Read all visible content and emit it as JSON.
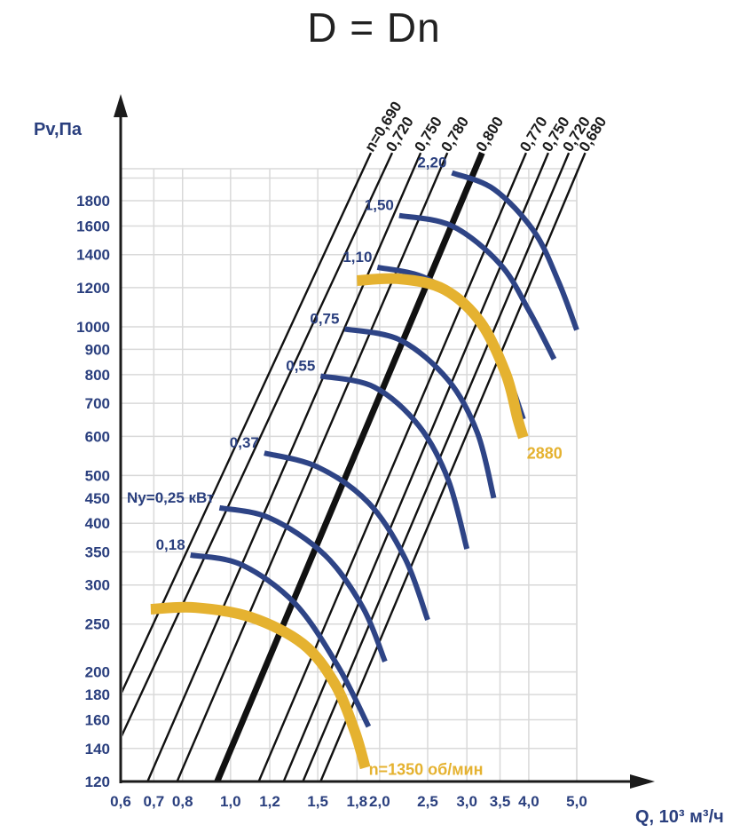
{
  "title": "D = Dn",
  "chart_data": {
    "type": "line",
    "ylabel": "Pv,Па",
    "xlabel": "Q, 10³ м³/ч",
    "x_scale": "log",
    "y_scale": "log",
    "xlim": [
      0.6,
      5.0
    ],
    "ylim": [
      120,
      2200
    ],
    "grid": true,
    "x_ticks": [
      {
        "value": 0.6,
        "label": "0,6"
      },
      {
        "value": 0.7,
        "label": "0,7"
      },
      {
        "value": 0.8,
        "label": "0,8"
      },
      {
        "value": 1.0,
        "label": "1,0"
      },
      {
        "value": 1.2,
        "label": "1,2"
      },
      {
        "value": 1.5,
        "label": "1,5"
      },
      {
        "value": 1.8,
        "label": "1,8"
      },
      {
        "value": 2.0,
        "label": "2,0"
      },
      {
        "value": 2.5,
        "label": "2,5"
      },
      {
        "value": 3.0,
        "label": "3,0"
      },
      {
        "value": 3.5,
        "label": "3,5"
      },
      {
        "value": 4.0,
        "label": "4,0"
      },
      {
        "value": 5.0,
        "label": "5,0"
      }
    ],
    "y_ticks": [
      {
        "value": 120,
        "label": "120"
      },
      {
        "value": 140,
        "label": "140"
      },
      {
        "value": 160,
        "label": "160"
      },
      {
        "value": 180,
        "label": "180"
      },
      {
        "value": 200,
        "label": "200"
      },
      {
        "value": 250,
        "label": "250"
      },
      {
        "value": 300,
        "label": "300"
      },
      {
        "value": 350,
        "label": "350"
      },
      {
        "value": 400,
        "label": "400"
      },
      {
        "value": 450,
        "label": "450"
      },
      {
        "value": 500,
        "label": "500"
      },
      {
        "value": 600,
        "label": "600"
      },
      {
        "value": 700,
        "label": "700"
      },
      {
        "value": 800,
        "label": "800"
      },
      {
        "value": 900,
        "label": "900"
      },
      {
        "value": 1000,
        "label": "1000"
      },
      {
        "value": 1200,
        "label": "1200"
      },
      {
        "value": 1400,
        "label": "1400"
      },
      {
        "value": 1600,
        "label": "1600"
      },
      {
        "value": 1800,
        "label": "1800"
      }
    ],
    "efficiency_lines": [
      {
        "label": "n=0,690",
        "bold": false,
        "points": [
          [
            0.6,
            180
          ],
          [
            1.92,
            2250
          ]
        ]
      },
      {
        "label": "0,720",
        "bold": false,
        "points": [
          [
            0.6,
            147
          ],
          [
            2.12,
            2250
          ]
        ]
      },
      {
        "label": "0,750",
        "bold": false,
        "points": [
          [
            0.68,
            120
          ],
          [
            2.42,
            2250
          ]
        ]
      },
      {
        "label": "0,780",
        "bold": false,
        "points": [
          [
            0.78,
            120
          ],
          [
            2.74,
            2250
          ]
        ]
      },
      {
        "label": "0,800",
        "bold": true,
        "points": [
          [
            0.94,
            120
          ],
          [
            3.22,
            2250
          ]
        ]
      },
      {
        "label": "0,770",
        "bold": false,
        "points": [
          [
            1.14,
            120
          ],
          [
            3.95,
            2250
          ]
        ]
      },
      {
        "label": "0,750",
        "bold": false,
        "points": [
          [
            1.28,
            120
          ],
          [
            4.38,
            2250
          ]
        ]
      },
      {
        "label": "0,720",
        "bold": false,
        "points": [
          [
            1.4,
            120
          ],
          [
            4.82,
            2250
          ]
        ]
      },
      {
        "label": "0,680",
        "bold": false,
        "points": [
          [
            1.52,
            120
          ],
          [
            5.2,
            2250
          ]
        ]
      }
    ],
    "speed_curves": [
      {
        "label": "n=1350 об/мин",
        "points": [
          [
            0.69,
            268
          ],
          [
            0.85,
            270
          ],
          [
            1.1,
            258
          ],
          [
            1.4,
            228
          ],
          [
            1.62,
            190
          ],
          [
            1.78,
            152
          ],
          [
            1.87,
            128
          ]
        ]
      },
      {
        "label": "2880",
        "points": [
          [
            1.8,
            1240
          ],
          [
            2.2,
            1250
          ],
          [
            2.7,
            1190
          ],
          [
            3.2,
            1020
          ],
          [
            3.6,
            800
          ],
          [
            3.8,
            650
          ],
          [
            3.9,
            597
          ]
        ]
      }
    ],
    "power_curves": [
      {
        "label": "0,18",
        "points": [
          [
            0.83,
            345
          ],
          [
            1.05,
            330
          ],
          [
            1.35,
            275
          ],
          [
            1.65,
            205
          ],
          [
            1.9,
            155
          ]
        ]
      },
      {
        "label": "Ny=0,25 кВт",
        "points": [
          [
            0.95,
            430
          ],
          [
            1.2,
            410
          ],
          [
            1.55,
            345
          ],
          [
            1.85,
            270
          ],
          [
            2.05,
            210
          ]
        ]
      },
      {
        "label": "0,37",
        "points": [
          [
            1.17,
            555
          ],
          [
            1.5,
            520
          ],
          [
            1.9,
            440
          ],
          [
            2.25,
            340
          ],
          [
            2.5,
            255
          ]
        ]
      },
      {
        "label": "0,55",
        "points": [
          [
            1.52,
            795
          ],
          [
            1.95,
            755
          ],
          [
            2.4,
            630
          ],
          [
            2.75,
            490
          ],
          [
            3.0,
            355
          ]
        ]
      },
      {
        "label": "0,75",
        "points": [
          [
            1.7,
            990
          ],
          [
            2.2,
            940
          ],
          [
            2.75,
            780
          ],
          [
            3.15,
            610
          ],
          [
            3.4,
            450
          ]
        ]
      },
      {
        "label": "1,10",
        "points": [
          [
            1.98,
            1320
          ],
          [
            2.5,
            1250
          ],
          [
            3.1,
            1050
          ],
          [
            3.55,
            840
          ],
          [
            3.9,
            650
          ]
        ]
      },
      {
        "label": "1,50",
        "points": [
          [
            2.19,
            1680
          ],
          [
            2.8,
            1600
          ],
          [
            3.5,
            1340
          ],
          [
            4.0,
            1080
          ],
          [
            4.5,
            860
          ]
        ]
      },
      {
        "label": "2,20",
        "points": [
          [
            2.8,
            2050
          ],
          [
            3.4,
            1900
          ],
          [
            4.1,
            1560
          ],
          [
            4.6,
            1230
          ],
          [
            5.0,
            985
          ]
        ]
      }
    ]
  },
  "colors": {
    "axis_text": "#2a3f7e",
    "power_curve": "#2e4486",
    "speed_curve": "#e5b230",
    "efficiency_line": "#111111",
    "grid": "#d9d9d9"
  }
}
